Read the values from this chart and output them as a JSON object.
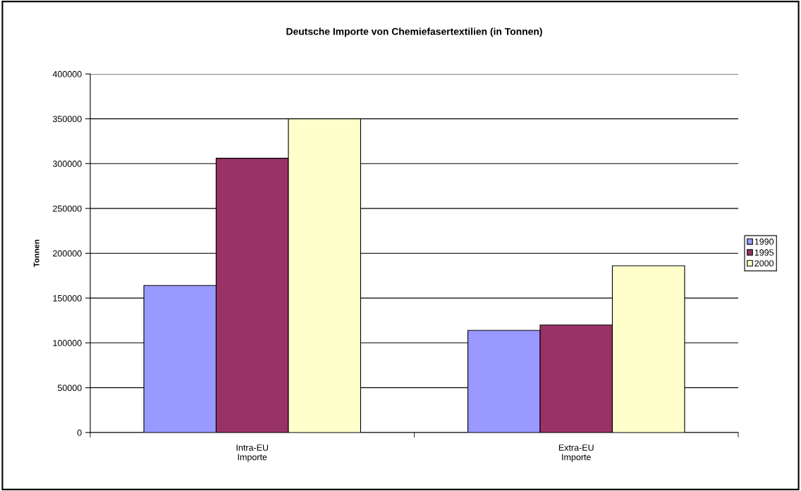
{
  "chart_data": {
    "type": "bar",
    "title": "Deutsche Importe von Chemiefasertextilien (in Tonnen)",
    "ylabel": "Tonnen",
    "categories": [
      "Intra-EU\nImporte",
      "Extra-EU\nImporte"
    ],
    "series": [
      {
        "name": "1990",
        "color": "#9999ff",
        "values": [
          164000,
          114000
        ]
      },
      {
        "name": "1995",
        "color": "#993366",
        "values": [
          306000,
          120000
        ]
      },
      {
        "name": "2000",
        "color": "#ffffcc",
        "values": [
          350000,
          186000
        ]
      }
    ],
    "ylim": [
      0,
      400000
    ],
    "yticks": [
      0,
      50000,
      100000,
      150000,
      200000,
      250000,
      300000,
      350000,
      400000
    ],
    "grid": "y",
    "legend": "right"
  }
}
